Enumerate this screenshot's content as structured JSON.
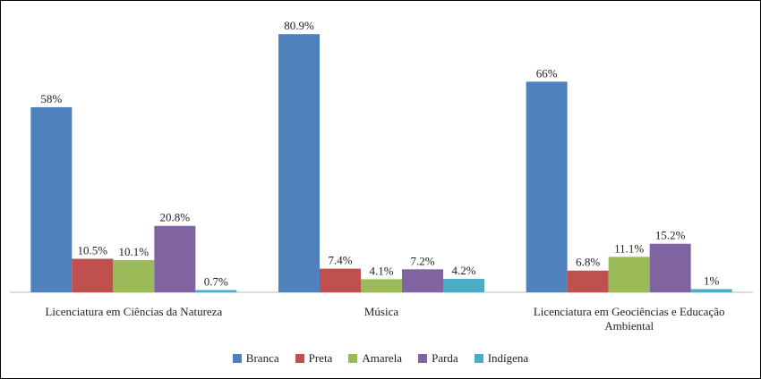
{
  "chart_data": {
    "type": "bar",
    "categories": [
      "Licenciatura em Ciências da Natureza",
      "Música",
      "Licenciatura em Geociências e Educação Ambiental"
    ],
    "series": [
      {
        "name": "Branca",
        "color": "#4f81bd",
        "values": [
          58,
          80.9,
          66
        ],
        "value_labels": [
          "58%",
          "80.9%",
          "66%"
        ]
      },
      {
        "name": "Preta",
        "color": "#c0504d",
        "values": [
          10.5,
          7.4,
          6.8
        ],
        "value_labels": [
          "10.5%",
          "7.4%",
          "6.8%"
        ]
      },
      {
        "name": "Amarela",
        "color": "#9bbb59",
        "values": [
          10.1,
          4.1,
          11.1
        ],
        "value_labels": [
          "10.1%",
          "4.1%",
          "11.1%"
        ]
      },
      {
        "name": "Parda",
        "color": "#8064a2",
        "values": [
          20.8,
          7.2,
          15.2
        ],
        "value_labels": [
          "20.8%",
          "7.2%",
          "15.2%"
        ]
      },
      {
        "name": "Indígena",
        "color": "#4bacc6",
        "values": [
          0.7,
          4.2,
          1
        ],
        "value_labels": [
          "0.7%",
          "4.2%",
          "1%"
        ]
      }
    ],
    "legend": "bottom"
  }
}
